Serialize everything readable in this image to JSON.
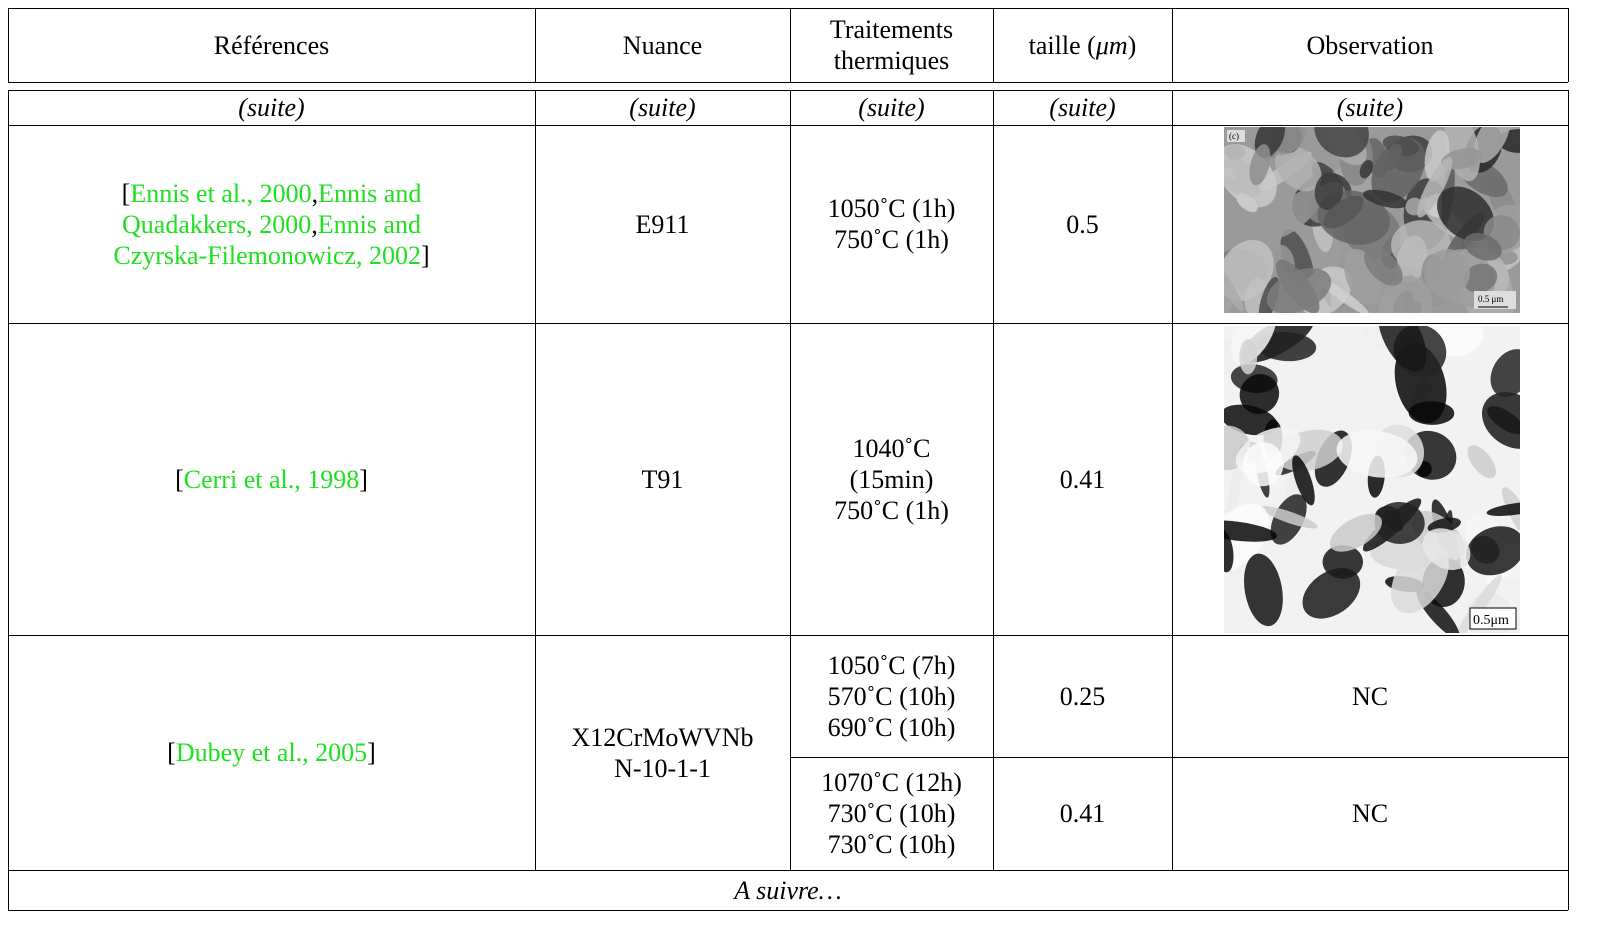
{
  "header": {
    "columns": [
      "Références",
      "Nuance",
      [
        "Traitements",
        "thermiques"
      ],
      [
        "taille (",
        "μm",
        ")"
      ],
      "Observation"
    ]
  },
  "continued": [
    "(suite)",
    "(suite)",
    "(suite)",
    "(suite)",
    "(suite)"
  ],
  "rows": [
    {
      "references": {
        "open": "[",
        "cites": [
          "Ennis et al., 2000",
          "Ennis and Quadakkers, 2000",
          "Ennis and Czyrska-Filemonowicz, 2002"
        ],
        "separator": ",",
        "close": "]"
      },
      "nuance": [
        "E911"
      ],
      "treatments": [
        "1050˚C (1h)",
        "750˚C (1h)"
      ],
      "taille": "0.5",
      "observation": {
        "tag": "(c)",
        "scale": "0.5 μm"
      }
    },
    {
      "references": {
        "open": "[",
        "cites": [
          "Cerri et al., 1998"
        ],
        "separator": ",",
        "close": "]"
      },
      "nuance": [
        "T91"
      ],
      "treatments": [
        "1040˚C",
        "(15min)",
        "750˚C (1h)"
      ],
      "taille": "0.41",
      "observation": {
        "scale": "0.5μm"
      }
    },
    {
      "references": {
        "open": "[",
        "cites": [
          "Dubey et al., 2005"
        ],
        "separator": ",",
        "close": "]"
      },
      "nuance": [
        "X12CrMoWVNb",
        "N-10-1-1"
      ],
      "sub": [
        {
          "treatments": [
            "1050˚C (7h)",
            "570˚C (10h)",
            "690˚C (10h)"
          ],
          "taille": "0.25",
          "observation": "NC"
        },
        {
          "treatments": [
            "1070˚C (12h)",
            "730˚C (10h)",
            "730˚C (10h)"
          ],
          "taille": "0.41",
          "observation": "NC"
        }
      ]
    }
  ],
  "footer": "A suivre…"
}
